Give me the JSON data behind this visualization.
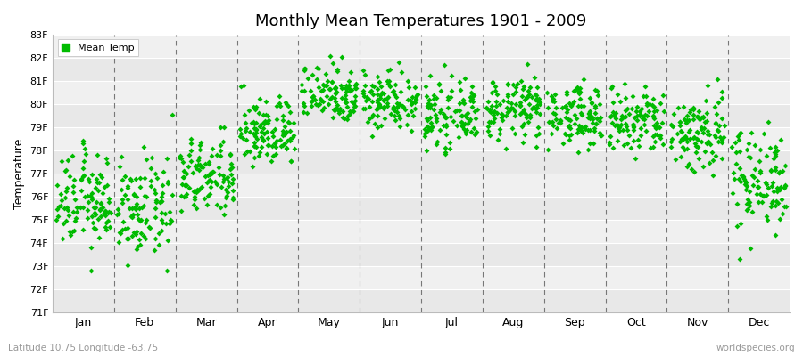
{
  "title": "Monthly Mean Temperatures 1901 - 2009",
  "ylabel": "Temperature",
  "xlabel_months": [
    "Jan",
    "Feb",
    "Mar",
    "Apr",
    "May",
    "Jun",
    "Jul",
    "Aug",
    "Sep",
    "Oct",
    "Nov",
    "Dec"
  ],
  "ytick_labels": [
    "71F",
    "72F",
    "73F",
    "74F",
    "75F",
    "76F",
    "77F",
    "78F",
    "79F",
    "80F",
    "81F",
    "82F",
    "83F"
  ],
  "ytick_values": [
    71,
    72,
    73,
    74,
    75,
    76,
    77,
    78,
    79,
    80,
    81,
    82,
    83
  ],
  "ylim": [
    71,
    83
  ],
  "dot_color": "#00BB00",
  "dot_size": 3,
  "background_color": "#ffffff",
  "stripe_dark": "#e8e8e8",
  "stripe_light": "#f0f0f0",
  "grid_color": "#ffffff",
  "dashed_line_color": "#777777",
  "legend_label": "Mean Temp",
  "footer_left": "Latitude 10.75 Longitude -63.75",
  "footer_right": "worldspecies.org",
  "start_year": 1901,
  "end_year": 2009,
  "monthly_means": [
    75.8,
    75.4,
    76.8,
    78.8,
    80.5,
    80.2,
    79.5,
    79.8,
    79.5,
    79.2,
    78.8,
    76.8
  ],
  "monthly_stds": [
    1.0,
    1.05,
    0.85,
    0.75,
    0.65,
    0.65,
    0.65,
    0.65,
    0.65,
    0.75,
    0.9,
    1.1
  ]
}
